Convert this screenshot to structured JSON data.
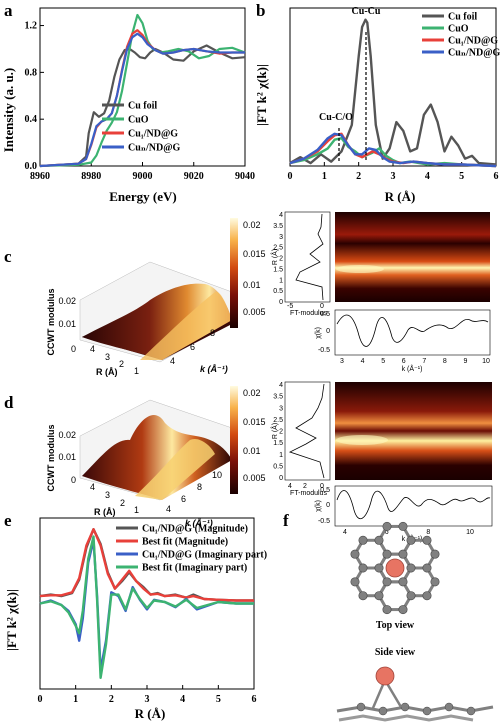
{
  "panel_labels": {
    "a": "a",
    "b": "b",
    "c": "c",
    "d": "d",
    "e": "e",
    "f": "f"
  },
  "colors": {
    "cu_foil": "#555555",
    "cuo": "#3cb371",
    "cu1": "#e8403a",
    "cun": "#3a5fc7",
    "fit_mag": "#e8403a",
    "fit_imag": "#3cb371",
    "carbon": "#808080",
    "copper": "#e77463"
  },
  "chart_data": [
    {
      "id": "a",
      "type": "line",
      "xlabel": "Energy (eV)",
      "ylabel": "Intensity (a. u.)",
      "xlim": [
        8960,
        9040
      ],
      "ylim": [
        0,
        1.35
      ],
      "xticks": [
        "8960",
        "8980",
        "9000",
        "9020",
        "9040"
      ],
      "yticks": [
        "0.0",
        "0.4",
        "0.8",
        "1.2"
      ],
      "legend_position": "center-right",
      "series": [
        {
          "name": "Cu foil",
          "color": "#555555",
          "x": [
            8960,
            8975,
            8978,
            8979,
            8981,
            8983,
            8985,
            8987,
            8989,
            8991,
            8993,
            8995,
            8997,
            8999,
            9001,
            9003,
            9005,
            9008,
            9012,
            9016,
            9020,
            9025,
            9030,
            9035,
            9040
          ],
          "y": [
            0.0,
            0.02,
            0.08,
            0.28,
            0.46,
            0.42,
            0.45,
            0.56,
            0.76,
            0.91,
            0.99,
            1.0,
            0.97,
            0.93,
            0.92,
            0.97,
            1.0,
            0.97,
            0.91,
            0.9,
            0.98,
            1.03,
            0.97,
            0.92,
            0.93
          ]
        },
        {
          "name": "CuO",
          "color": "#3cb371",
          "x": [
            8960,
            8975,
            8980,
            8982,
            8984,
            8986,
            8988,
            8990,
            8992,
            8994,
            8996,
            8998,
            9000,
            9002,
            9004,
            9007,
            9010,
            9014,
            9018,
            9022,
            9026,
            9030,
            9035,
            9040
          ],
          "y": [
            0.0,
            0.01,
            0.03,
            0.09,
            0.2,
            0.3,
            0.37,
            0.46,
            0.64,
            0.88,
            1.13,
            1.29,
            1.22,
            1.07,
            1.0,
            0.97,
            0.98,
            1.0,
            0.98,
            0.92,
            0.94,
            1.0,
            1.01,
            0.97
          ]
        },
        {
          "name": "Cu₁/ND@G",
          "color": "#e8403a",
          "x": [
            8960,
            8975,
            8978,
            8980,
            8982,
            8984,
            8986,
            8988,
            8990,
            8992,
            8994,
            8996,
            8998,
            9000,
            9002,
            9005,
            9008,
            9012,
            9016,
            9020,
            9025,
            9030,
            9035,
            9040
          ],
          "y": [
            0.0,
            0.02,
            0.06,
            0.18,
            0.33,
            0.38,
            0.4,
            0.45,
            0.6,
            0.82,
            1.02,
            1.13,
            1.16,
            1.12,
            1.05,
            0.99,
            0.96,
            0.97,
            0.99,
            1.0,
            0.98,
            0.96,
            0.97,
            0.97
          ]
        },
        {
          "name": "Cuₙ/ND@G",
          "color": "#3a5fc7",
          "x": [
            8960,
            8975,
            8978,
            8980,
            8982,
            8984,
            8986,
            8988,
            8990,
            8992,
            8994,
            8996,
            8998,
            9000,
            9002,
            9005,
            9008,
            9012,
            9016,
            9020,
            9025,
            9030,
            9035,
            9040
          ],
          "y": [
            0.0,
            0.02,
            0.06,
            0.19,
            0.34,
            0.38,
            0.4,
            0.45,
            0.6,
            0.81,
            1.0,
            1.1,
            1.13,
            1.1,
            1.04,
            0.99,
            0.96,
            0.97,
            0.99,
            1.0,
            0.98,
            0.97,
            0.97,
            0.97
          ]
        }
      ]
    },
    {
      "id": "b",
      "type": "line",
      "xlabel": "R (Å)",
      "ylabel": "|FT k² χ(k)|",
      "xlim": [
        0,
        6
      ],
      "xticks": [
        "0",
        "1",
        "2",
        "3",
        "4",
        "5",
        "6"
      ],
      "legend_position": "top-right",
      "annotations": [
        {
          "text": "Cu-Cu",
          "x": 2.25
        },
        {
          "text": "Cu-C/O",
          "x": 1.5
        }
      ],
      "series": [
        {
          "name": "Cu foil",
          "color": "#555555",
          "x": [
            0,
            0.3,
            0.6,
            0.9,
            1.2,
            1.5,
            1.8,
            2.0,
            2.1,
            2.2,
            2.25,
            2.35,
            2.5,
            2.7,
            2.9,
            3.1,
            3.3,
            3.5,
            3.7,
            3.9,
            4.1,
            4.3,
            4.5,
            4.7,
            4.9,
            5.1,
            5.3,
            5.5,
            6.0
          ],
          "y": [
            0.02,
            0.06,
            0.02,
            0.08,
            0.03,
            0.1,
            0.28,
            0.75,
            0.95,
            1.0,
            0.98,
            0.75,
            0.28,
            0.05,
            0.12,
            0.3,
            0.24,
            0.1,
            0.12,
            0.35,
            0.42,
            0.3,
            0.1,
            0.2,
            0.14,
            0.05,
            0.07,
            0.02,
            0.01
          ]
        },
        {
          "name": "CuO",
          "color": "#3cb371",
          "x": [
            0,
            0.4,
            0.8,
            1.1,
            1.3,
            1.5,
            1.7,
            1.9,
            2.1,
            2.4,
            2.6,
            2.8,
            3.0,
            3.2,
            3.5,
            4.0,
            4.5,
            5.0,
            6.0
          ],
          "y": [
            0.02,
            0.04,
            0.08,
            0.12,
            0.18,
            0.19,
            0.13,
            0.1,
            0.06,
            0.09,
            0.12,
            0.07,
            0.04,
            0.02,
            0.03,
            0.01,
            0.02,
            0.01,
            0.0
          ]
        },
        {
          "name": "Cu₁/ND@G",
          "color": "#e8403a",
          "x": [
            0,
            0.4,
            0.8,
            1.1,
            1.3,
            1.5,
            1.7,
            1.9,
            2.1,
            2.4,
            2.6,
            2.8,
            3.0,
            3.3,
            3.6,
            4.0,
            4.5,
            5.0,
            6.0
          ],
          "y": [
            0.02,
            0.05,
            0.1,
            0.17,
            0.21,
            0.22,
            0.14,
            0.08,
            0.06,
            0.1,
            0.08,
            0.05,
            0.03,
            0.02,
            0.03,
            0.02,
            0.01,
            0.01,
            0.0
          ]
        },
        {
          "name": "Cuₙ/ND@G",
          "color": "#3a5fc7",
          "x": [
            0,
            0.4,
            0.8,
            1.1,
            1.3,
            1.5,
            1.7,
            1.9,
            2.1,
            2.3,
            2.5,
            2.7,
            2.9,
            3.2,
            3.6,
            4.0,
            4.5,
            5.0,
            6.0
          ],
          "y": [
            0.02,
            0.05,
            0.11,
            0.19,
            0.22,
            0.21,
            0.14,
            0.08,
            0.08,
            0.12,
            0.11,
            0.06,
            0.03,
            0.02,
            0.03,
            0.02,
            0.01,
            0.01,
            0.0
          ]
        }
      ]
    },
    {
      "id": "c",
      "type": "heatmap",
      "zlabel": "CCWT modulus",
      "xlabel_3d": "R (Å)",
      "klabel_3d": "k (Å⁻¹)",
      "colorbar_ticks": [
        "0.02",
        "0.015",
        "0.01",
        "0.005"
      ],
      "z_ticks": [
        "0",
        "0.01",
        "0.02"
      ],
      "r_ticks_3d": [
        "4",
        "3",
        "2",
        "1"
      ],
      "k_ticks_3d": [
        "4",
        "6",
        "8"
      ],
      "wt_ylabel": "R (Å)",
      "wt_xlabel": "k (Å⁻¹)",
      "wt_y_ticks": [
        "4",
        "3.5",
        "3",
        "2.5",
        "2",
        "1.5",
        "1",
        "0.5",
        "0"
      ],
      "wt_x_ticks": [
        "3",
        "4",
        "5",
        "6",
        "7",
        "8",
        "9",
        "10"
      ],
      "ft_label": "FT-modulus",
      "ft_ticks": [
        "-5",
        "0"
      ],
      "chi_ylabel": "χ(k)",
      "chi_y_ticks": [
        "0.5",
        "0",
        "-0.5"
      ]
    },
    {
      "id": "d",
      "type": "heatmap",
      "zlabel": "CCWT modulus",
      "xlabel_3d": "R (Å)",
      "klabel_3d": "k (Å⁻¹)",
      "colorbar_ticks": [
        "0.02",
        "0.015",
        "0.01",
        "0.005"
      ],
      "z_ticks": [
        "0",
        "0.01",
        "0.02"
      ],
      "r_ticks_3d": [
        "4",
        "3",
        "2",
        "1"
      ],
      "k_ticks_3d": [
        "4",
        "6",
        "8",
        "10"
      ],
      "wt_ylabel": "R (Å)",
      "wt_xlabel": "k (Å⁻¹)",
      "wt_y_ticks": [
        "4",
        "3.5",
        "3",
        "2.5",
        "2",
        "1.5",
        "1",
        "0.5",
        "0"
      ],
      "wt_x_ticks": [
        "4",
        "6",
        "8",
        "10"
      ],
      "ft_label": "FT-modulus",
      "ft_ticks": [
        "4",
        "2",
        "0"
      ],
      "chi_ylabel": "χ(k)",
      "chi_y_ticks": [
        "0.5",
        "0",
        "-0.5"
      ]
    },
    {
      "id": "e",
      "type": "line",
      "xlabel": "R (Å)",
      "ylabel": "|FT k² χ(k)|",
      "xlim": [
        0,
        6
      ],
      "xticks": [
        "0",
        "1",
        "2",
        "3",
        "4",
        "5",
        "6"
      ],
      "legend_position": "top-right",
      "series": [
        {
          "name": "Cu₁/ND@G (Magnitude)",
          "color": "#555555",
          "x": [
            0,
            0.3,
            0.6,
            0.9,
            1.1,
            1.3,
            1.5,
            1.7,
            1.9,
            2.1,
            2.3,
            2.5,
            2.7,
            2.9,
            3.1,
            3.3,
            3.5,
            3.8,
            4.1,
            4.3,
            4.6,
            5.0,
            5.5,
            6.0
          ],
          "y": [
            0.1,
            0.12,
            0.1,
            0.14,
            0.32,
            0.75,
            1.0,
            0.8,
            0.42,
            0.2,
            0.3,
            0.42,
            0.3,
            0.22,
            0.12,
            0.14,
            0.1,
            0.12,
            0.08,
            0.12,
            0.06,
            0.05,
            0.04,
            0.04
          ]
        },
        {
          "name": "Best fit (Magnitude)",
          "color": "#e8403a",
          "x": [
            0,
            0.3,
            0.6,
            0.9,
            1.1,
            1.3,
            1.5,
            1.7,
            1.9,
            2.1,
            2.3,
            2.5,
            2.7,
            2.9,
            3.1,
            3.3,
            3.5,
            3.8,
            4.1,
            4.3,
            4.6,
            5.0,
            5.5,
            6.0
          ],
          "y": [
            0.1,
            0.11,
            0.11,
            0.15,
            0.34,
            0.78,
            1.0,
            0.78,
            0.4,
            0.2,
            0.32,
            0.44,
            0.3,
            0.2,
            0.12,
            0.13,
            0.1,
            0.11,
            0.08,
            0.1,
            0.06,
            0.05,
            0.04,
            0.04
          ]
        },
        {
          "name": "Cu₁/ND@G (Imaginary part)",
          "color": "#3a5fc7",
          "x": [
            0,
            0.3,
            0.6,
            0.8,
            1.0,
            1.1,
            1.2,
            1.35,
            1.5,
            1.6,
            1.7,
            1.85,
            2.0,
            2.2,
            2.4,
            2.6,
            2.8,
            3.0,
            3.2,
            3.5,
            3.8,
            4.1,
            4.4,
            5.0,
            5.5,
            6.0
          ],
          "y": [
            0.0,
            0.04,
            -0.02,
            -0.1,
            -0.28,
            -0.5,
            -0.2,
            0.55,
            0.85,
            0.1,
            -0.9,
            -0.5,
            0.15,
            0.1,
            -0.1,
            0.22,
            0.05,
            -0.08,
            0.05,
            0.02,
            -0.05,
            0.06,
            -0.08,
            0.02,
            0.0,
            0.0
          ]
        },
        {
          "name": "Best fit (Imaginary part)",
          "color": "#3cb371",
          "x": [
            0,
            0.3,
            0.6,
            0.8,
            1.0,
            1.1,
            1.2,
            1.35,
            1.5,
            1.6,
            1.7,
            1.85,
            2.0,
            2.2,
            2.4,
            2.6,
            2.8,
            3.0,
            3.2,
            3.5,
            3.8,
            4.1,
            4.4,
            5.0,
            5.5,
            6.0
          ],
          "y": [
            0.0,
            0.03,
            -0.02,
            -0.12,
            -0.3,
            -0.4,
            -0.1,
            0.6,
            0.9,
            0.05,
            -1.0,
            -0.55,
            0.12,
            0.12,
            -0.08,
            0.2,
            0.06,
            -0.06,
            0.04,
            0.02,
            -0.04,
            0.05,
            -0.06,
            0.02,
            0.0,
            0.0
          ]
        }
      ]
    }
  ],
  "panel_f": {
    "top_view": "Top view",
    "side_view": "Side view"
  }
}
